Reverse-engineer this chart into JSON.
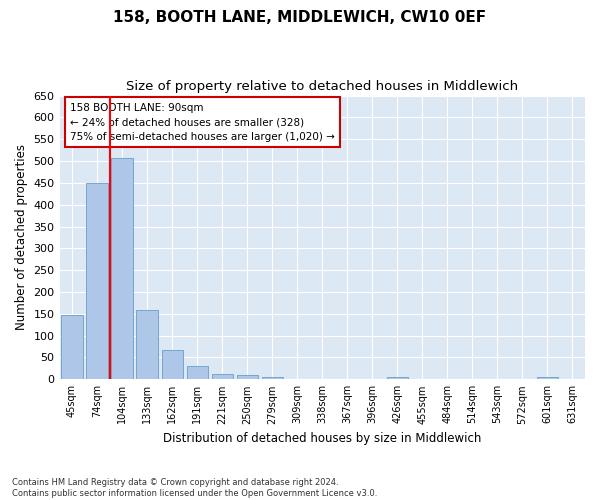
{
  "title": "158, BOOTH LANE, MIDDLEWICH, CW10 0EF",
  "subtitle": "Size of property relative to detached houses in Middlewich",
  "xlabel": "Distribution of detached houses by size in Middlewich",
  "ylabel": "Number of detached properties",
  "categories": [
    "45sqm",
    "74sqm",
    "104sqm",
    "133sqm",
    "162sqm",
    "191sqm",
    "221sqm",
    "250sqm",
    "279sqm",
    "309sqm",
    "338sqm",
    "367sqm",
    "396sqm",
    "426sqm",
    "455sqm",
    "484sqm",
    "514sqm",
    "543sqm",
    "572sqm",
    "601sqm",
    "631sqm"
  ],
  "values": [
    148,
    450,
    507,
    158,
    68,
    30,
    13,
    9,
    5,
    0,
    0,
    0,
    0,
    6,
    0,
    0,
    0,
    0,
    0,
    6,
    0
  ],
  "bar_color": "#aec6e8",
  "bar_edge_color": "#6a9ec8",
  "red_line_x": 1.5,
  "annotation_text": "158 BOOTH LANE: 90sqm\n← 24% of detached houses are smaller (328)\n75% of semi-detached houses are larger (1,020) →",
  "annotation_box_color": "#ffffff",
  "annotation_box_edge": "#cc0000",
  "ylim": [
    0,
    650
  ],
  "yticks": [
    0,
    50,
    100,
    150,
    200,
    250,
    300,
    350,
    400,
    450,
    500,
    550,
    600,
    650
  ],
  "background_color": "#dde8f5",
  "grid_color": "#ffffff",
  "footer": "Contains HM Land Registry data © Crown copyright and database right 2024.\nContains public sector information licensed under the Open Government Licence v3.0.",
  "title_fontsize": 11,
  "subtitle_fontsize": 9.5,
  "ylabel_fontsize": 8.5,
  "xlabel_fontsize": 8.5
}
